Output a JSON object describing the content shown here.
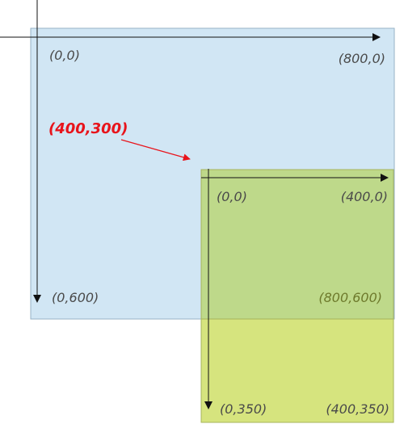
{
  "colors": {
    "outer_fill": "#d1e6f4",
    "outer_stroke": "#97b3c6",
    "inner_fill": "#d6e47e",
    "inner_stroke": "#a7b45b",
    "overlap_fill": "#bed98a",
    "axis": "#111111",
    "highlight": "#e8141b",
    "olive_text": "#6e7a2c"
  },
  "outer_frame": {
    "corner_top_left": "(0,0)",
    "corner_top_right": "(800,0)",
    "corner_bottom_left": "(0,600)",
    "corner_bottom_right": "(800,600)"
  },
  "inner_frame": {
    "corner_top_left": "(0,0)",
    "corner_top_right": "(400,0)",
    "corner_bottom_left": "(0,350)",
    "corner_bottom_right": "(400,350)"
  },
  "offset_label": "(400,300)"
}
